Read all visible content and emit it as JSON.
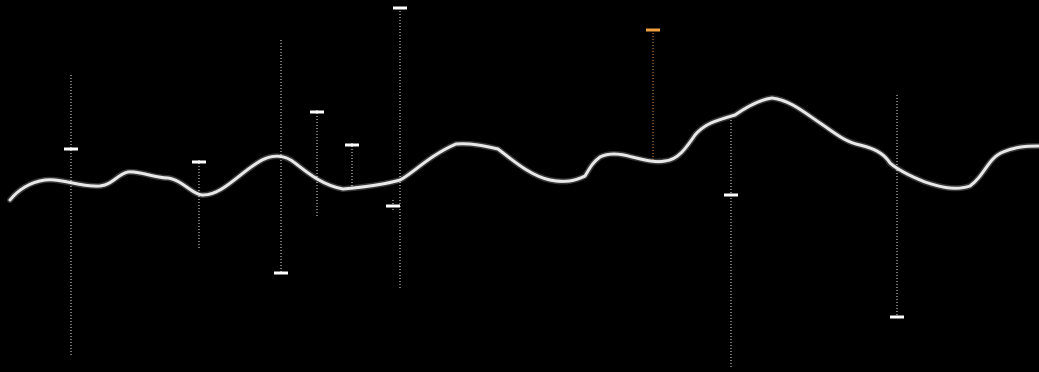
{
  "colors": {
    "background": "#000000",
    "waveform": "#e8e8e8",
    "marker": "#ffffff",
    "highlight_marker": "#f0a040"
  },
  "marker_count": 11,
  "highlighted_marker_index": 9
}
